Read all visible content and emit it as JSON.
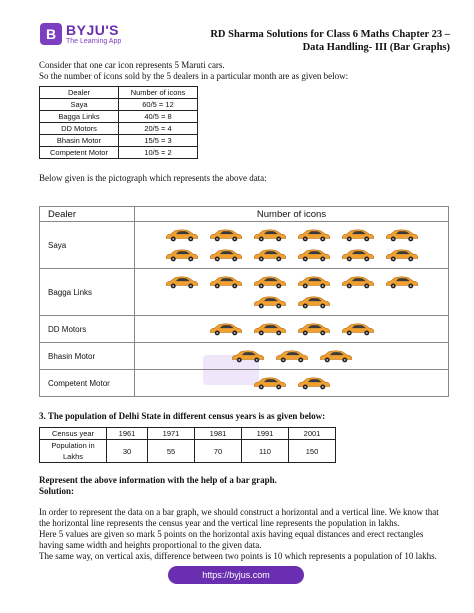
{
  "header": {
    "logo_letter": "B",
    "logo_name": "BYJU'S",
    "logo_tagline": "The Learning App",
    "title_line1": "RD Sharma Solutions for Class 6 Maths Chapter 23 –",
    "title_line2": "Data Handling- III (Bar Graphs)"
  },
  "intro": {
    "line1": "Consider that one car icon represents 5 Maruti cars.",
    "line2": "So the number of icons sold by the 5 dealers in a particular month are as given below:"
  },
  "table1": {
    "headers": [
      "Dealer",
      "Number of icons"
    ],
    "rows": [
      [
        "Saya",
        "60/5 = 12"
      ],
      [
        "Bagga Links",
        "40/5 = 8"
      ],
      [
        "DD Motors",
        "20/5 = 4"
      ],
      [
        "Bhasin Motor",
        "15/5 = 3"
      ],
      [
        "Competent Motor",
        "10/5 = 2"
      ]
    ]
  },
  "pictograph_intro": "Below given is the pictograph which represents the above data:",
  "pictograph": {
    "headers": [
      "Dealer",
      "Number of icons"
    ],
    "icon_name": "car-icon",
    "car_color": "#f0a030",
    "rows": [
      {
        "dealer": "Saya",
        "count": 12
      },
      {
        "dealer": "Bagga Links",
        "count": 8
      },
      {
        "dealer": "DD Motors",
        "count": 4
      },
      {
        "dealer": "Bhasin Motor",
        "count": 3
      },
      {
        "dealer": "Competent Motor",
        "count": 2
      }
    ]
  },
  "q3": {
    "title": "3. The population of Delhi State in different census years is as given below:",
    "table": {
      "row1": [
        "Census year",
        "1961",
        "1971",
        "1981",
        "1991",
        "2001"
      ],
      "row2": [
        "Population in Lakhs",
        "30",
        "55",
        "70",
        "110",
        "150"
      ]
    },
    "instruction": "Represent the above information with the help of a bar graph.",
    "solution_label": "Solution:",
    "para1": "In order to represent the data on a bar graph, we should construct a horizontal and a vertical line. We know that the horizontal line represents the census year and the vertical line represents the population in lakhs.",
    "para2": "Here 5 values are given so mark 5 points on the horizontal axis having equal distances and erect rectangles having same width and heights proportional to the given data.",
    "para3": "The same way, on vertical axis, difference between two points is 10 which represents a population of 10 lakhs."
  },
  "footer": {
    "url": "https://byjus.com"
  }
}
